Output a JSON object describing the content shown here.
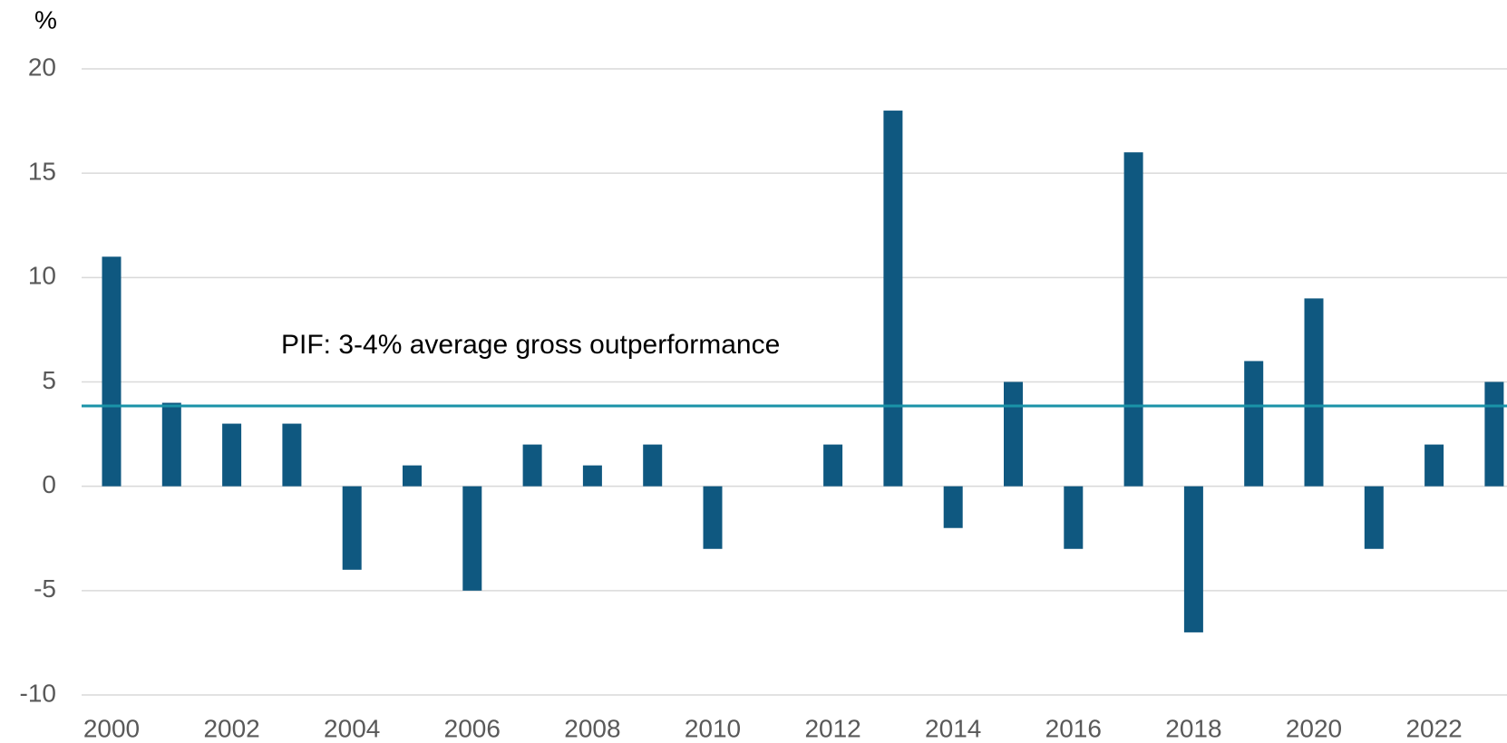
{
  "chart_data": {
    "type": "bar",
    "y_unit": "%",
    "categories": [
      "2000",
      null,
      "2002",
      null,
      "2004",
      null,
      "2006",
      null,
      "2008",
      null,
      "2010",
      null,
      "2012",
      null,
      "2014",
      null,
      "2016",
      null,
      "2018",
      null,
      "2020",
      null,
      "2022",
      null
    ],
    "values": [
      11,
      4,
      3,
      3,
      -4,
      1,
      -5,
      2,
      1,
      2,
      -3,
      0,
      2,
      18,
      -2,
      5,
      -3,
      16,
      -7,
      6,
      9,
      -3,
      2,
      5
    ],
    "color": "#0f5880",
    "ylim": [
      -10,
      20
    ],
    "yticks": [
      -10,
      -5,
      0,
      5,
      10,
      15,
      20
    ],
    "grid": true,
    "reference_line": {
      "value": 3.85,
      "color": "#1a93a8",
      "label": "PIF: 3-4% average gross outperformance"
    }
  }
}
